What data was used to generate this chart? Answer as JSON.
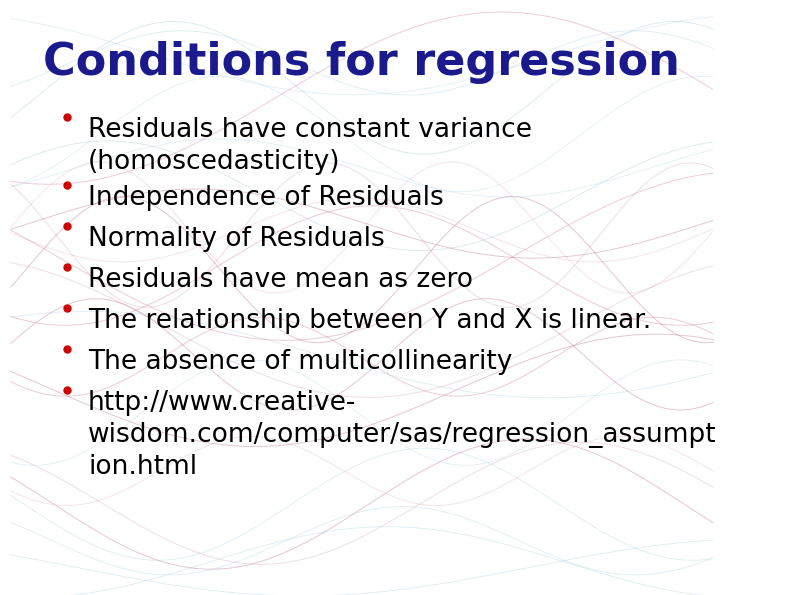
{
  "title": "Conditions for regression",
  "title_color": "#1a1a8c",
  "title_fontsize": 32,
  "title_bold": true,
  "bullet_color": "#cc0000",
  "text_color": "#000000",
  "bullet_fontsize": 19,
  "bullets": [
    "Residuals have constant variance\n(homoscedasticity)",
    "Independence of Residuals",
    "Normality of Residuals",
    "Residuals have mean as zero",
    "The relationship between Y and X is linear.",
    "The absence of multicollinearity",
    "http://www.creative-\nwisdom.com/computer/sas/regression_assumpt\nion.html"
  ],
  "background_color": "#ffffff",
  "fig_width": 7.94,
  "fig_height": 5.95
}
